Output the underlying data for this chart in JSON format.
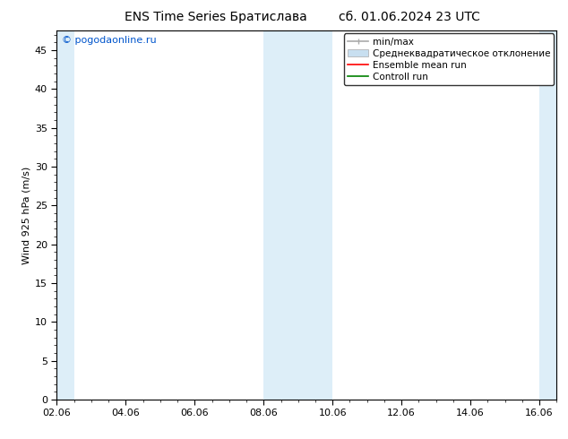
{
  "title_left": "ENS Time Series Братислава",
  "title_right": "сб. 01.06.2024 23 UTC",
  "ylabel": "Wind 925 hPa (m/s)",
  "watermark": "© pogodaonline.ru",
  "watermark_color": "#0055cc",
  "ylim": [
    0,
    47.5
  ],
  "yticks": [
    0,
    5,
    10,
    15,
    20,
    25,
    30,
    35,
    40,
    45
  ],
  "xlim": [
    0,
    14.5
  ],
  "xtick_labels": [
    "02.06",
    "04.06",
    "06.06",
    "08.06",
    "10.06",
    "12.06",
    "14.06",
    "16.06"
  ],
  "xtick_positions": [
    0,
    2,
    4,
    6,
    8,
    10,
    12,
    14
  ],
  "bg_color": "#ffffff",
  "plot_bg_color": "#ffffff",
  "shaded_bands": [
    {
      "x_start": 0.0,
      "x_end": 0.5,
      "color": "#ddeef8"
    },
    {
      "x_start": 6.0,
      "x_end": 8.0,
      "color": "#ddeef8"
    },
    {
      "x_start": 14.0,
      "x_end": 14.5,
      "color": "#ddeef8"
    }
  ],
  "legend_items": [
    {
      "label": "min/max",
      "color": "#aaaaaa",
      "lw": 1.5
    },
    {
      "label": "Среднеквадратическое отклонение",
      "color": "#c8dff0",
      "lw": 8
    },
    {
      "label": "Ensemble mean run",
      "color": "#ff0000",
      "lw": 1.2
    },
    {
      "label": "Controll run",
      "color": "#008000",
      "lw": 1.2
    }
  ],
  "font_size_title": 10,
  "font_size_legend": 7.5,
  "font_size_ticks": 8,
  "font_size_ylabel": 8,
  "font_size_watermark": 8
}
